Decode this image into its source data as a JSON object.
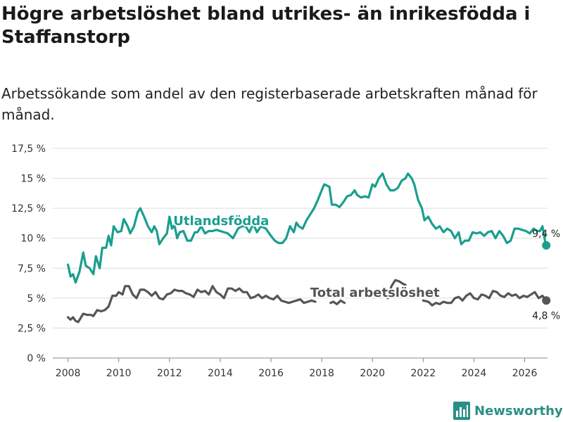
{
  "header": {
    "title": "Högre arbetslöshet bland utrikes- än inrikesfödda i Staffanstorp",
    "subtitle": "Arbetssökande som andel av den registerbaserade arbetskraften månad för månad."
  },
  "branding": {
    "name": "Newsworthy",
    "icon": "newsworthy-logo-icon",
    "color": "#2a8f86"
  },
  "chart_data": {
    "type": "line",
    "title": "Högre arbetslöshet bland utrikes- än inrikesfödda i Staffanstorp",
    "subtitle": "Arbetssökande som andel av den registerbaserade arbetskraften månad för månad.",
    "xlabel": "",
    "ylabel": "",
    "xlim": [
      2007.4,
      2026.9
    ],
    "ylim": [
      0,
      17.5
    ],
    "x_ticks": [
      2008,
      2010,
      2012,
      2014,
      2016,
      2018,
      2020,
      2022,
      2024,
      2026
    ],
    "x_tick_labels": [
      "2008",
      "2010",
      "2012",
      "2014",
      "2016",
      "2018",
      "2020",
      "2022",
      "2024",
      "2026"
    ],
    "y_ticks": [
      0,
      2.5,
      5,
      7.5,
      10,
      12.5,
      15,
      17.5
    ],
    "y_tick_labels": [
      "0 %",
      "2,5 %",
      "5 %",
      "7,5 %",
      "10 %",
      "12,5 %",
      "15 %",
      "17,5 %"
    ],
    "grid": true,
    "series": [
      {
        "name": "Utlandsfödda",
        "color": "#1a9e8f",
        "end_label": "9,4 %",
        "points": [
          [
            2008.0,
            7.8
          ],
          [
            2008.1,
            6.8
          ],
          [
            2008.2,
            7.0
          ],
          [
            2008.3,
            6.3
          ],
          [
            2008.45,
            7.2
          ],
          [
            2008.6,
            8.8
          ],
          [
            2008.7,
            7.7
          ],
          [
            2008.85,
            7.5
          ],
          [
            2009.0,
            7.0
          ],
          [
            2009.1,
            8.5
          ],
          [
            2009.25,
            7.5
          ],
          [
            2009.35,
            9.2
          ],
          [
            2009.5,
            9.2
          ],
          [
            2009.6,
            10.2
          ],
          [
            2009.7,
            9.4
          ],
          [
            2009.8,
            11.0
          ],
          [
            2009.95,
            10.5
          ],
          [
            2010.1,
            10.6
          ],
          [
            2010.2,
            11.6
          ],
          [
            2010.35,
            11.0
          ],
          [
            2010.45,
            10.4
          ],
          [
            2010.6,
            11.0
          ],
          [
            2010.75,
            12.2
          ],
          [
            2010.85,
            12.5
          ],
          [
            2011.0,
            11.8
          ],
          [
            2011.15,
            11.0
          ],
          [
            2011.3,
            10.5
          ],
          [
            2011.4,
            11.0
          ],
          [
            2011.5,
            10.6
          ],
          [
            2011.6,
            9.5
          ],
          [
            2011.75,
            10.0
          ],
          [
            2011.9,
            10.4
          ],
          [
            2012.0,
            11.8
          ],
          [
            2012.1,
            10.8
          ],
          [
            2012.2,
            11.1
          ],
          [
            2012.3,
            10.0
          ],
          [
            2012.4,
            10.5
          ],
          [
            2012.55,
            10.6
          ],
          [
            2012.7,
            9.8
          ],
          [
            2012.85,
            9.8
          ],
          [
            2013.0,
            10.5
          ],
          [
            2013.1,
            10.5
          ],
          [
            2013.25,
            11.0
          ],
          [
            2013.4,
            10.4
          ],
          [
            2013.55,
            10.6
          ],
          [
            2013.7,
            10.6
          ],
          [
            2013.85,
            10.7
          ],
          [
            2014.3,
            10.4
          ],
          [
            2014.5,
            10.0
          ],
          [
            2014.7,
            10.8
          ],
          [
            2014.85,
            11.0
          ],
          [
            2015.0,
            11.0
          ],
          [
            2015.15,
            10.5
          ],
          [
            2015.3,
            11.2
          ],
          [
            2015.45,
            10.5
          ],
          [
            2015.6,
            11.0
          ],
          [
            2015.8,
            10.8
          ],
          [
            2016.0,
            10.2
          ],
          [
            2016.15,
            9.8
          ],
          [
            2016.3,
            9.6
          ],
          [
            2016.45,
            9.6
          ],
          [
            2016.6,
            10.0
          ],
          [
            2016.75,
            11.0
          ],
          [
            2016.9,
            10.5
          ],
          [
            2017.0,
            11.3
          ],
          [
            2017.1,
            11.0
          ],
          [
            2017.25,
            10.8
          ],
          [
            2017.4,
            11.5
          ],
          [
            2017.55,
            12.0
          ],
          [
            2017.7,
            12.5
          ],
          [
            2017.85,
            13.2
          ],
          [
            2018.0,
            14.0
          ],
          [
            2018.1,
            14.5
          ],
          [
            2018.3,
            14.3
          ],
          [
            2018.4,
            12.8
          ],
          [
            2018.55,
            12.8
          ],
          [
            2018.7,
            12.6
          ],
          [
            2018.85,
            13.0
          ],
          [
            2019.0,
            13.5
          ],
          [
            2019.15,
            13.6
          ],
          [
            2019.3,
            14.0
          ],
          [
            2019.4,
            13.6
          ],
          [
            2019.55,
            13.4
          ],
          [
            2019.7,
            13.5
          ],
          [
            2019.85,
            13.4
          ],
          [
            2020.0,
            14.5
          ],
          [
            2020.1,
            14.3
          ],
          [
            2020.25,
            15.0
          ],
          [
            2020.4,
            15.4
          ],
          [
            2020.55,
            14.5
          ],
          [
            2020.7,
            14.0
          ],
          [
            2020.85,
            14.0
          ],
          [
            2021.0,
            14.2
          ],
          [
            2021.15,
            14.8
          ],
          [
            2021.3,
            15.0
          ],
          [
            2021.4,
            15.4
          ],
          [
            2021.55,
            15.0
          ],
          [
            2021.65,
            14.5
          ],
          [
            2021.8,
            13.2
          ],
          [
            2021.95,
            12.5
          ],
          [
            2022.05,
            11.5
          ],
          [
            2022.2,
            11.8
          ],
          [
            2022.35,
            11.2
          ],
          [
            2022.5,
            10.8
          ],
          [
            2022.65,
            11.0
          ],
          [
            2022.8,
            10.5
          ],
          [
            2022.95,
            10.8
          ],
          [
            2023.1,
            10.6
          ],
          [
            2023.25,
            10.0
          ],
          [
            2023.4,
            10.5
          ],
          [
            2023.5,
            9.5
          ],
          [
            2023.65,
            9.8
          ],
          [
            2023.8,
            9.8
          ],
          [
            2023.95,
            10.5
          ],
          [
            2024.1,
            10.4
          ],
          [
            2024.25,
            10.5
          ],
          [
            2024.4,
            10.2
          ],
          [
            2024.55,
            10.5
          ],
          [
            2024.7,
            10.6
          ],
          [
            2024.85,
            10.0
          ],
          [
            2025.0,
            10.6
          ],
          [
            2025.15,
            10.2
          ],
          [
            2025.3,
            9.6
          ],
          [
            2025.45,
            9.8
          ],
          [
            2025.6,
            10.8
          ],
          [
            2025.75,
            10.8
          ],
          [
            2025.9,
            10.7
          ],
          [
            2026.05,
            10.6
          ],
          [
            2026.2,
            10.4
          ],
          [
            2026.35,
            10.8
          ],
          [
            2026.5,
            10.6
          ],
          [
            2026.6,
            10.6
          ],
          [
            2026.7,
            11.0
          ],
          [
            2026.8,
            9.8
          ],
          [
            2026.85,
            9.4
          ]
        ]
      },
      {
        "name": "Total arbetslöshet",
        "color": "#555555",
        "end_label": "4,8 %",
        "points": [
          [
            2008.0,
            3.4
          ],
          [
            2008.1,
            3.2
          ],
          [
            2008.2,
            3.4
          ],
          [
            2008.3,
            3.1
          ],
          [
            2008.4,
            3.0
          ],
          [
            2008.6,
            3.7
          ],
          [
            2008.75,
            3.6
          ],
          [
            2008.9,
            3.6
          ],
          [
            2009.0,
            3.5
          ],
          [
            2009.15,
            4.0
          ],
          [
            2009.3,
            3.9
          ],
          [
            2009.45,
            4.0
          ],
          [
            2009.6,
            4.3
          ],
          [
            2009.75,
            5.2
          ],
          [
            2009.9,
            5.2
          ],
          [
            2010.0,
            5.5
          ],
          [
            2010.15,
            5.3
          ],
          [
            2010.25,
            6.0
          ],
          [
            2010.4,
            6.0
          ],
          [
            2010.55,
            5.3
          ],
          [
            2010.7,
            5.0
          ],
          [
            2010.85,
            5.7
          ],
          [
            2011.0,
            5.7
          ],
          [
            2011.15,
            5.5
          ],
          [
            2011.3,
            5.2
          ],
          [
            2011.45,
            5.5
          ],
          [
            2011.6,
            5.0
          ],
          [
            2011.75,
            4.9
          ],
          [
            2011.9,
            5.3
          ],
          [
            2012.05,
            5.4
          ],
          [
            2012.2,
            5.7
          ],
          [
            2012.35,
            5.6
          ],
          [
            2012.5,
            5.6
          ],
          [
            2012.65,
            5.4
          ],
          [
            2012.8,
            5.3
          ],
          [
            2012.95,
            5.1
          ],
          [
            2013.1,
            5.7
          ],
          [
            2013.25,
            5.5
          ],
          [
            2013.4,
            5.6
          ],
          [
            2013.55,
            5.3
          ],
          [
            2013.7,
            6.0
          ],
          [
            2013.85,
            5.5
          ],
          [
            2014.0,
            5.3
          ],
          [
            2014.15,
            5.0
          ],
          [
            2014.3,
            5.8
          ],
          [
            2014.45,
            5.8
          ],
          [
            2014.6,
            5.6
          ],
          [
            2014.75,
            5.8
          ],
          [
            2014.9,
            5.5
          ],
          [
            2015.05,
            5.5
          ],
          [
            2015.2,
            5.0
          ],
          [
            2015.35,
            5.1
          ],
          [
            2015.5,
            5.3
          ],
          [
            2015.65,
            5.0
          ],
          [
            2015.8,
            5.2
          ],
          [
            2015.95,
            5.0
          ],
          [
            2016.1,
            4.9
          ],
          [
            2016.25,
            5.2
          ],
          [
            2016.4,
            4.8
          ],
          [
            2016.55,
            4.7
          ],
          [
            2016.7,
            4.6
          ],
          [
            2016.85,
            4.7
          ],
          [
            2017.0,
            4.8
          ],
          [
            2017.15,
            4.9
          ],
          [
            2017.3,
            4.6
          ],
          [
            2017.45,
            4.7
          ],
          [
            2017.6,
            4.8
          ],
          [
            2017.75,
            4.7
          ]
        ],
        "points_b": [
          [
            2018.35,
            4.6
          ],
          [
            2018.45,
            4.7
          ],
          [
            2018.6,
            4.5
          ],
          [
            2018.75,
            4.8
          ],
          [
            2018.9,
            4.6
          ]
        ],
        "points_c": [
          [
            2020.6,
            5.0
          ],
          [
            2020.75,
            6.0
          ],
          [
            2020.9,
            6.5
          ],
          [
            2021.05,
            6.4
          ],
          [
            2021.2,
            6.2
          ],
          [
            2021.3,
            6.1
          ]
        ],
        "points_d": [
          [
            2022.0,
            4.8
          ],
          [
            2022.2,
            4.7
          ],
          [
            2022.35,
            4.4
          ],
          [
            2022.5,
            4.6
          ],
          [
            2022.65,
            4.5
          ],
          [
            2022.8,
            4.7
          ],
          [
            2022.95,
            4.6
          ],
          [
            2023.1,
            4.6
          ],
          [
            2023.25,
            5.0
          ],
          [
            2023.4,
            5.1
          ],
          [
            2023.55,
            4.8
          ],
          [
            2023.7,
            5.2
          ],
          [
            2023.85,
            5.4
          ],
          [
            2024.0,
            5.0
          ],
          [
            2024.15,
            4.9
          ],
          [
            2024.3,
            5.3
          ],
          [
            2024.45,
            5.2
          ],
          [
            2024.6,
            5.0
          ],
          [
            2024.75,
            5.6
          ],
          [
            2024.9,
            5.5
          ],
          [
            2025.05,
            5.2
          ],
          [
            2025.2,
            5.1
          ],
          [
            2025.35,
            5.4
          ],
          [
            2025.5,
            5.2
          ],
          [
            2025.65,
            5.3
          ],
          [
            2025.8,
            5.0
          ],
          [
            2025.95,
            5.2
          ],
          [
            2026.1,
            5.1
          ],
          [
            2026.25,
            5.3
          ],
          [
            2026.4,
            5.5
          ],
          [
            2026.55,
            5.0
          ],
          [
            2026.7,
            5.2
          ],
          [
            2026.85,
            4.8
          ]
        ]
      }
    ],
    "annotations": [
      {
        "text": "Utlandsfödda",
        "series": "Utlandsfödda",
        "at": [
          2012.15,
          11.1
        ]
      },
      {
        "text": "Total arbetslöshet",
        "series": "Total arbetslöshet",
        "at": [
          2017.55,
          5.1
        ]
      }
    ]
  }
}
